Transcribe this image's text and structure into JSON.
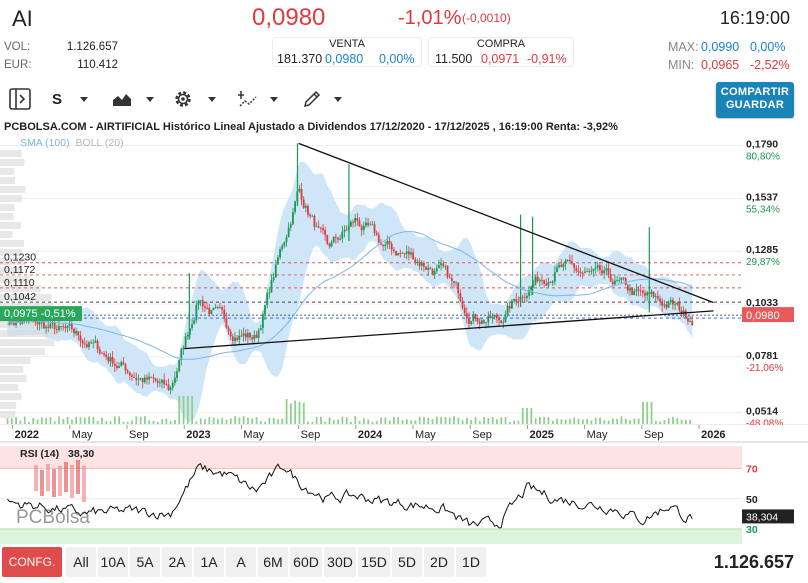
{
  "header": {
    "ticker": "AI",
    "price": "0,0980",
    "change_pct": "-1,01%",
    "change_abs": "(-0,0010)",
    "time": "16:19:00",
    "vol_label": "VOL:",
    "vol_value": "1.126.657",
    "eur_label": "EUR:",
    "eur_value": "110.412",
    "venta_label": "VENTA",
    "venta_qty": "181.370",
    "venta_price": "0,0980",
    "venta_pct": "0,00%",
    "compra_label": "COMPRA",
    "compra_qty": "11.500",
    "compra_price": "0,0971",
    "compra_pct": "-0,91%",
    "max_label": "MAX:",
    "max_value": "0,0990",
    "max_pct": "0,00%",
    "min_label": "MIN:",
    "min_value": "0,0965",
    "min_pct": "-2,52%"
  },
  "toolbar": {
    "scale_label": "S",
    "share_line1": "COMPARTIR",
    "share_line2": "GUARDAR",
    "icons": [
      "panel-toggle-icon",
      "area-chart-icon",
      "gear-icon",
      "drawing-tools-icon",
      "pencil-icon"
    ]
  },
  "colors": {
    "up": "#1a9850",
    "down": "#e0393e",
    "sma": "#7fb6e6",
    "boll_fill": "#c7e2f7",
    "accent": "#1a84b8",
    "price_tag": "#e85a5a",
    "ref_tag": "#2aa85a"
  },
  "chart_data": {
    "type": "candlestick",
    "title": "PCBOLSA.COM - AIRTIFICIAL Histórico Lineal Ajustado a Dividendos 17/12/2020 - 17/12/2025 , 16:19:00 Renta: -3,92%",
    "indicators": [
      "SMA (100)",
      "BOLL (20)"
    ],
    "x_ticks": [
      "2022",
      "May",
      "Sep",
      "2023",
      "May",
      "Sep",
      "2024",
      "May",
      "Sep",
      "2025",
      "May",
      "Sep",
      "2026"
    ],
    "y_ticks": [
      {
        "value": "0,1790",
        "pct": "80,80%"
      },
      {
        "value": "0,1537",
        "pct": "55,34%"
      },
      {
        "value": "0,1285",
        "pct": "29,87%"
      },
      {
        "value": "0,1033",
        "pct": ""
      },
      {
        "value": "0,0781",
        "pct": "-21,06%"
      },
      {
        "value": "0,0514",
        "pct": "-48,08%"
      }
    ],
    "horizontal_levels": [
      "0,1230",
      "0,1172",
      "0,1110",
      "0,1042"
    ],
    "current_price_tag": "0,0980",
    "reference_tag": "0,0975 -0,51%",
    "trendlines": [
      {
        "name": "upper",
        "from": [
          "2023-09",
          0.18
        ],
        "to": [
          "2026-02",
          0.104
        ]
      },
      {
        "name": "lower",
        "from": [
          "2023-01",
          0.082
        ],
        "to": [
          "2026-02",
          0.1
        ]
      }
    ],
    "close_series_approx": [
      [
        "2021-12",
        0.097
      ],
      [
        "2022-03",
        0.093
      ],
      [
        "2022-06",
        0.086
      ],
      [
        "2022-09",
        0.072
      ],
      [
        "2022-12",
        0.061
      ],
      [
        "2023-02",
        0.107
      ],
      [
        "2023-04",
        0.092
      ],
      [
        "2023-06",
        0.087
      ],
      [
        "2023-08",
        0.134
      ],
      [
        "2023-09",
        0.158
      ],
      [
        "2023-11",
        0.128
      ],
      [
        "2024-01",
        0.143
      ],
      [
        "2024-03",
        0.13
      ],
      [
        "2024-05",
        0.126
      ],
      [
        "2024-07",
        0.118
      ],
      [
        "2024-09",
        0.1
      ],
      [
        "2024-11",
        0.095
      ],
      [
        "2025-01",
        0.112
      ],
      [
        "2025-03",
        0.121
      ],
      [
        "2025-05",
        0.117
      ],
      [
        "2025-07",
        0.113
      ],
      [
        "2025-09",
        0.106
      ],
      [
        "2025-11",
        0.103
      ],
      [
        "2025-12",
        0.098
      ]
    ],
    "rsi": {
      "label": "RSI (14)",
      "value": "38,30",
      "current_tag": "38,304",
      "levels": [
        "70",
        "50",
        "30"
      ],
      "series_approx": [
        [
          "2021-12",
          48
        ],
        [
          "2022-03",
          45
        ],
        [
          "2022-06",
          40
        ],
        [
          "2022-09",
          42
        ],
        [
          "2022-12",
          40
        ],
        [
          "2023-02",
          70
        ],
        [
          "2023-04",
          66
        ],
        [
          "2023-06",
          55
        ],
        [
          "2023-08",
          72
        ],
        [
          "2023-09",
          61
        ],
        [
          "2023-11",
          50
        ],
        [
          "2024-01",
          52
        ],
        [
          "2024-03",
          48
        ],
        [
          "2024-05",
          46
        ],
        [
          "2024-07",
          44
        ],
        [
          "2024-09",
          32
        ],
        [
          "2024-11",
          34
        ],
        [
          "2025-01",
          57
        ],
        [
          "2025-03",
          50
        ],
        [
          "2025-05",
          47
        ],
        [
          "2025-07",
          44
        ],
        [
          "2025-09",
          36
        ],
        [
          "2025-11",
          46
        ],
        [
          "2025-12",
          38
        ]
      ]
    },
    "grid": true,
    "legend": "top-left"
  },
  "footer": {
    "config_label": "CONFG.",
    "periods": [
      "All",
      "10A",
      "5A",
      "2A",
      "1A",
      "A",
      "6M",
      "60D",
      "30D",
      "15D",
      "5D",
      "2D",
      "1D"
    ],
    "total_volume": "1.126.657",
    "watermark": "PCBolsa"
  }
}
